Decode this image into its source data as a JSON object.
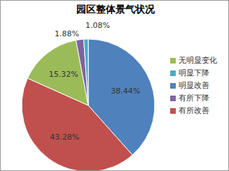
{
  "chart_data": {
    "type": "pie",
    "title": "园区整体景气状况",
    "categories": [
      "明显改善",
      "有所改善",
      "无明显变化",
      "有所下降",
      "明显下降"
    ],
    "values": [
      38.44,
      43.28,
      15.32,
      1.88,
      1.08
    ],
    "value_labels": [
      "38.44%",
      "43.28%",
      "15.32%",
      "1.88%",
      "1.08%"
    ],
    "colors": [
      "#4f81bd",
      "#c0504d",
      "#9bbb59",
      "#8064a2",
      "#4bacc6"
    ],
    "data_labels": true,
    "legend": "right"
  }
}
